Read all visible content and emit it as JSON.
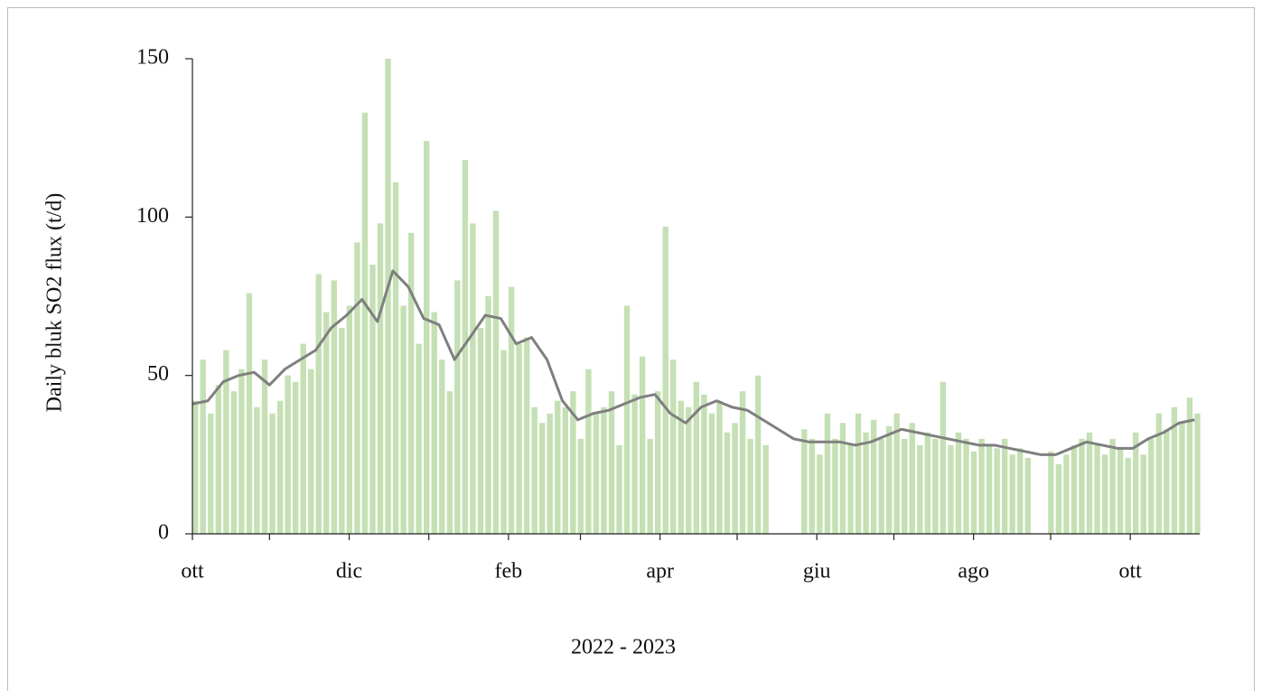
{
  "chart_data": {
    "type": "combo",
    "ylabel": "Daily bluk  SO2 flux (t/d)",
    "xlabel": "2022 - 2023",
    "xlim": [
      0,
      392
    ],
    "ylim": [
      0,
      150
    ],
    "yticks": [
      0,
      50,
      100,
      150
    ],
    "xticks": [
      {
        "value": 0,
        "label": "ott"
      },
      {
        "value": 61,
        "label": "dic"
      },
      {
        "value": 123,
        "label": "feb"
      },
      {
        "value": 182,
        "label": "apr"
      },
      {
        "value": 243,
        "label": "giu"
      },
      {
        "value": 304,
        "label": "ago"
      },
      {
        "value": 365,
        "label": "ott"
      }
    ],
    "xticks_minor": [
      30,
      92,
      151,
      212,
      273,
      334
    ],
    "bars": {
      "color": "#c5e0b4",
      "x": [
        0,
        3,
        6,
        9,
        12,
        15,
        18,
        21,
        24,
        27,
        30,
        33,
        36,
        39,
        42,
        45,
        48,
        51,
        54,
        57,
        60,
        63,
        66,
        69,
        72,
        75,
        78,
        81,
        84,
        87,
        90,
        93,
        96,
        99,
        102,
        105,
        108,
        111,
        114,
        117,
        120,
        123,
        126,
        129,
        132,
        135,
        138,
        141,
        144,
        147,
        150,
        153,
        156,
        159,
        162,
        165,
        168,
        171,
        174,
        177,
        180,
        183,
        186,
        189,
        192,
        195,
        198,
        201,
        204,
        207,
        210,
        213,
        216,
        219,
        222,
        225,
        228,
        231,
        234,
        237,
        240,
        243,
        246,
        249,
        252,
        255,
        258,
        261,
        264,
        267,
        270,
        273,
        276,
        279,
        282,
        285,
        288,
        291,
        294,
        297,
        300,
        303,
        306,
        309,
        312,
        315,
        318,
        321,
        324,
        327,
        330,
        333,
        336,
        339,
        342,
        345,
        348,
        351,
        354,
        357,
        360,
        363,
        366,
        369,
        372,
        375,
        378,
        381,
        384,
        387,
        390
      ],
      "values": [
        42,
        55,
        38,
        47,
        58,
        45,
        52,
        76,
        40,
        55,
        38,
        42,
        50,
        48,
        60,
        52,
        82,
        70,
        80,
        65,
        72,
        92,
        133,
        85,
        98,
        150,
        111,
        72,
        95,
        60,
        124,
        70,
        55,
        45,
        80,
        118,
        98,
        65,
        75,
        102,
        58,
        78,
        60,
        62,
        40,
        35,
        38,
        42,
        40,
        45,
        30,
        52,
        38,
        40,
        45,
        28,
        72,
        44,
        56,
        30,
        45,
        97,
        55,
        42,
        40,
        48,
        44,
        38,
        42,
        32,
        35,
        45,
        30,
        50,
        28,
        null,
        null,
        null,
        null,
        33,
        30,
        25,
        38,
        30,
        35,
        28,
        38,
        32,
        36,
        30,
        34,
        38,
        30,
        35,
        28,
        32,
        30,
        48,
        28,
        32,
        30,
        26,
        30,
        28,
        27,
        30,
        25,
        27,
        24,
        null,
        null,
        26,
        22,
        25,
        28,
        30,
        32,
        28,
        25,
        30,
        27,
        24,
        32,
        25,
        30,
        38,
        33,
        40,
        35,
        43,
        38
      ]
    },
    "line": {
      "color": "#7f7f7f",
      "x": [
        0,
        6,
        12,
        18,
        24,
        30,
        36,
        42,
        48,
        54,
        60,
        66,
        72,
        78,
        84,
        90,
        96,
        102,
        108,
        114,
        120,
        126,
        132,
        138,
        144,
        150,
        156,
        162,
        168,
        174,
        180,
        186,
        192,
        198,
        204,
        210,
        216,
        222,
        228,
        234,
        240,
        246,
        252,
        258,
        264,
        270,
        276,
        282,
        288,
        294,
        300,
        306,
        312,
        318,
        324,
        330,
        336,
        342,
        348,
        354,
        360,
        366,
        372,
        378,
        384,
        390
      ],
      "values": [
        41,
        42,
        48,
        50,
        51,
        47,
        52,
        55,
        58,
        65,
        69,
        74,
        67,
        83,
        78,
        68,
        66,
        55,
        62,
        69,
        68,
        60,
        62,
        55,
        42,
        36,
        38,
        39,
        41,
        43,
        44,
        38,
        35,
        40,
        42,
        40,
        39,
        36,
        33,
        30,
        29,
        29,
        29,
        28,
        29,
        31,
        33,
        32,
        31,
        30,
        29,
        28,
        28,
        27,
        26,
        25,
        25,
        27,
        29,
        28,
        27,
        27,
        30,
        32,
        35,
        36
      ]
    }
  }
}
